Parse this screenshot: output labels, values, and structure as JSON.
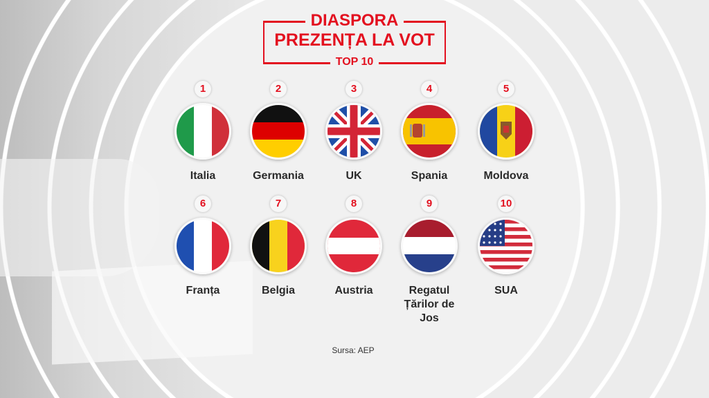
{
  "title": {
    "line1": "DIASPORA",
    "line2": "PREZENȚA LA VOT",
    "line3": "TOP 10"
  },
  "colors": {
    "accent": "#e3101f",
    "text": "#2a2a2a",
    "background": "#ececec"
  },
  "countries": [
    {
      "rank": "1",
      "name": "Italia",
      "flag": "italy-flag-icon"
    },
    {
      "rank": "2",
      "name": "Germania",
      "flag": "germany-flag-icon"
    },
    {
      "rank": "3",
      "name": "UK",
      "flag": "uk-flag-icon"
    },
    {
      "rank": "4",
      "name": "Spania",
      "flag": "spain-flag-icon"
    },
    {
      "rank": "5",
      "name": "Moldova",
      "flag": "moldova-flag-icon"
    },
    {
      "rank": "6",
      "name": "Franța",
      "flag": "france-flag-icon"
    },
    {
      "rank": "7",
      "name": "Belgia",
      "flag": "belgium-flag-icon"
    },
    {
      "rank": "8",
      "name": "Austria",
      "flag": "austria-flag-icon"
    },
    {
      "rank": "9",
      "name": "Regatul Țărilor de Jos",
      "flag": "netherlands-flag-icon"
    },
    {
      "rank": "10",
      "name": "SUA",
      "flag": "usa-flag-icon"
    }
  ],
  "source": "Sursa: AEP"
}
